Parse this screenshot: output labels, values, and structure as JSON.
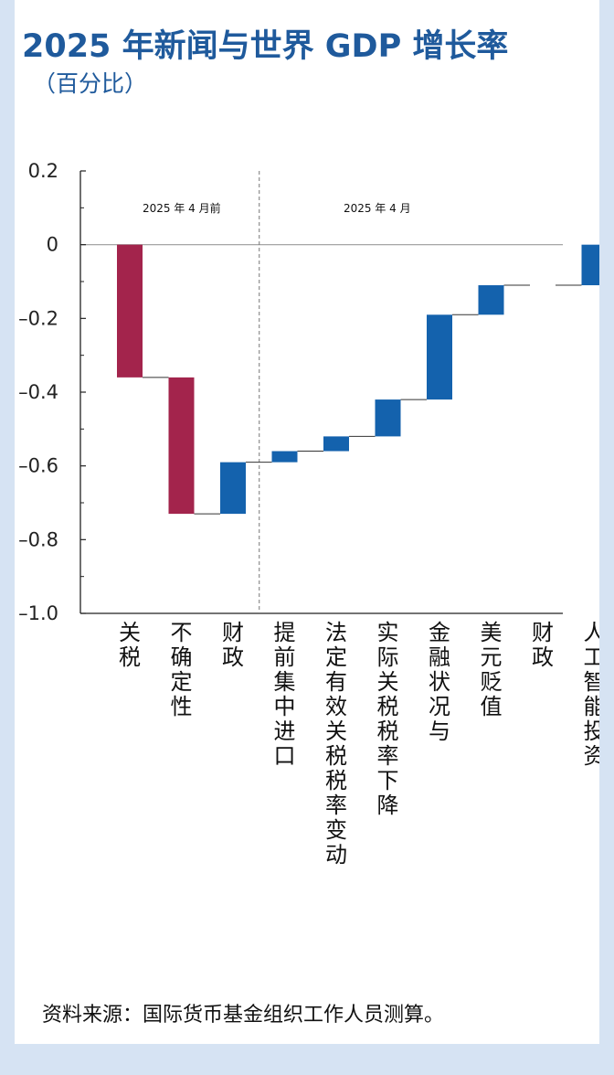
{
  "title": "2025 年新闻与世界 GDP 增长率",
  "subtitle": "（百分比）",
  "source": "资料来源：国际货币基金组织工作人员测算。",
  "colors": {
    "tariff": "#a3244c",
    "other": "#1462ad",
    "title": "#1f5a9c",
    "background": "#d6e3f3"
  },
  "chart_data": {
    "type": "bar",
    "subtype": "waterfall",
    "ylim": [
      -1.0,
      0.2
    ],
    "yticks": [
      0.2,
      0,
      -0.2,
      -0.4,
      -0.6,
      -0.8,
      -1.0
    ],
    "ytick_labels": [
      "0.2",
      "0",
      "–0.2",
      "–0.4",
      "–0.6",
      "–0.8",
      "–1.0"
    ],
    "grid": false,
    "legend": "none",
    "sections": [
      {
        "label": "2025 年 4 月前",
        "categories": 3
      },
      {
        "label": "2025 年 4 月",
        "categories": 7
      }
    ],
    "categories": [
      "关税",
      "不确定性",
      "财政",
      "提前集中进口",
      "法定有效关税税率变动",
      "实际关税税率下降",
      "金融状况与",
      "美元贬值",
      "财政",
      "人工智能投资"
    ],
    "bars": [
      {
        "category": "关税",
        "start": 0.0,
        "end": -0.36,
        "color": "tariff"
      },
      {
        "category": "不确定性",
        "start": -0.36,
        "end": -0.73,
        "color": "tariff"
      },
      {
        "category": "财政",
        "start": -0.73,
        "end": -0.59,
        "color": "other"
      },
      {
        "category": "提前集中进口",
        "start": -0.59,
        "end": -0.56,
        "color": "other"
      },
      {
        "category": "法定有效关税税率变动",
        "start": -0.56,
        "end": -0.52,
        "color": "other"
      },
      {
        "category": "实际关税税率下降",
        "start": -0.52,
        "end": -0.42,
        "color": "other"
      },
      {
        "category": "金融状况与",
        "start": -0.42,
        "end": -0.19,
        "color": "other"
      },
      {
        "category": "美元贬值",
        "start": -0.19,
        "end": -0.11,
        "color": "other"
      },
      {
        "category": "财政",
        "start": -0.11,
        "end": -0.11,
        "color": "other"
      },
      {
        "category": "人工智能投资",
        "start": -0.11,
        "end": 0.0,
        "color": "other"
      }
    ]
  }
}
